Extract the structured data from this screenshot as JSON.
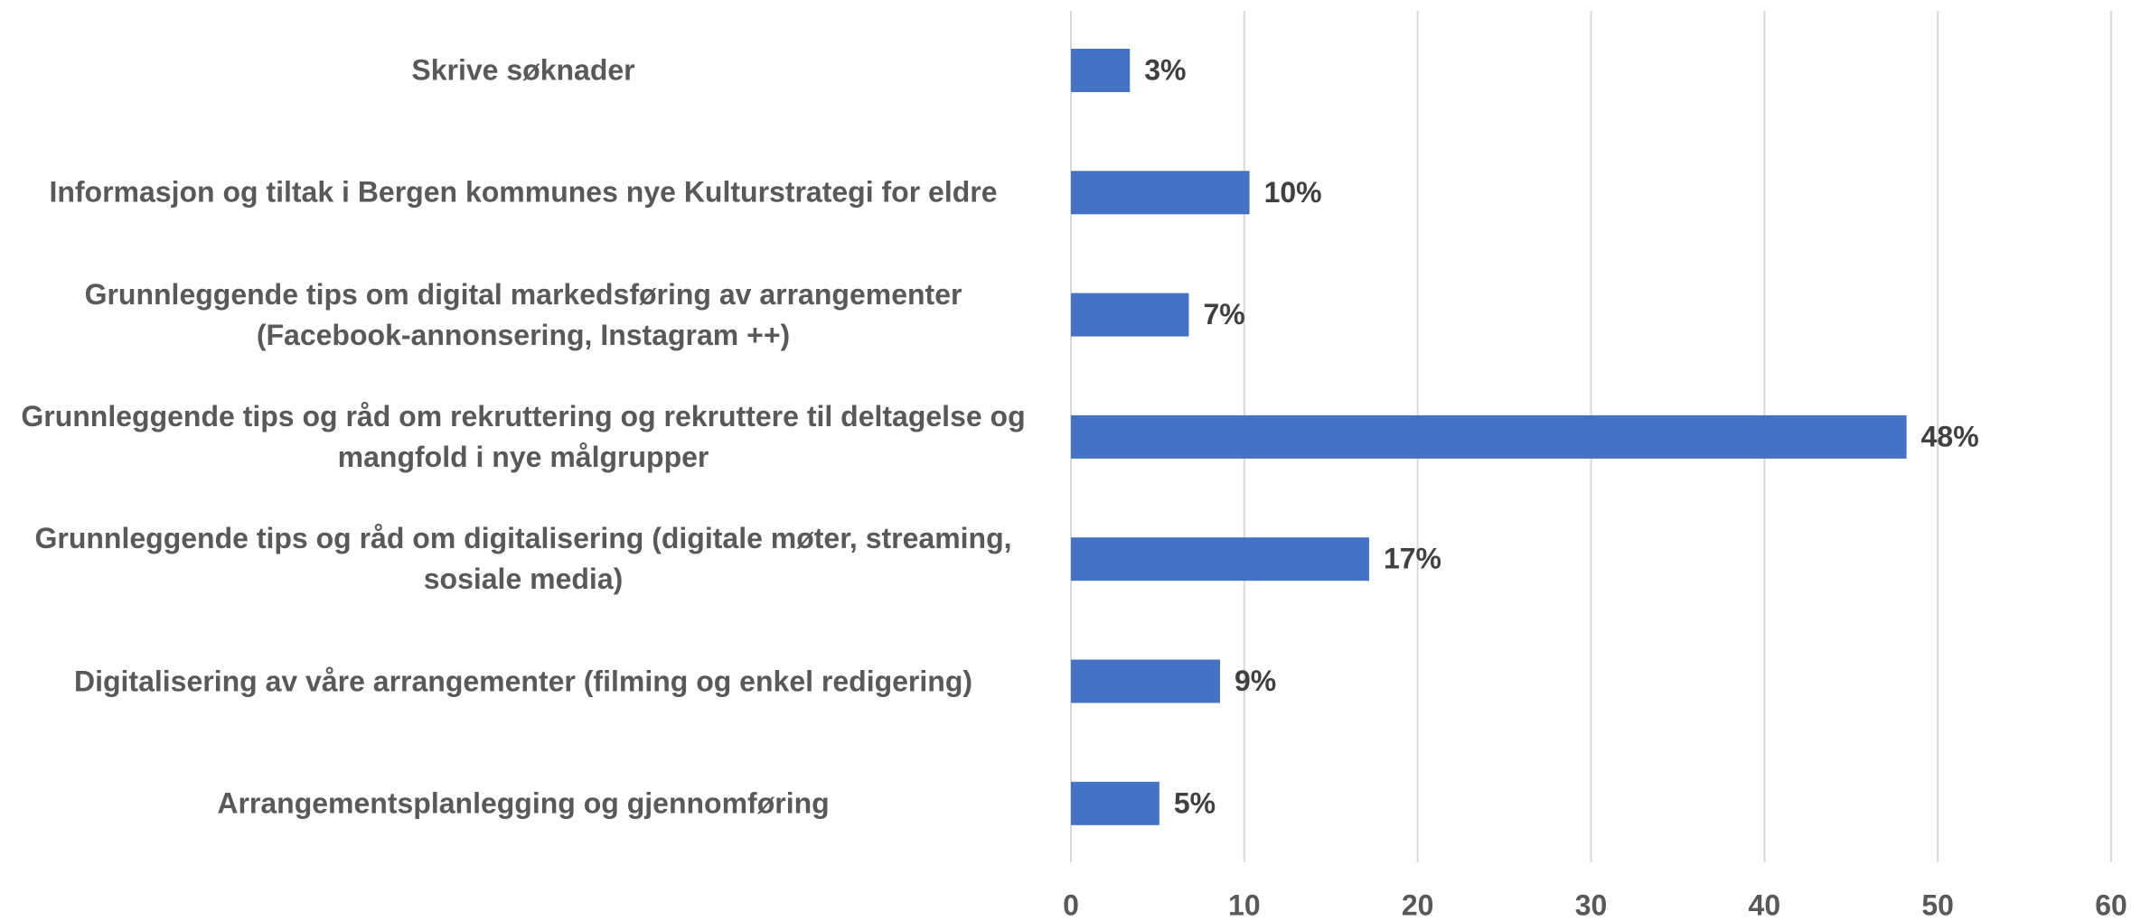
{
  "chart_data": {
    "type": "bar",
    "orientation": "horizontal",
    "categories": [
      "Skrive søknader",
      "Informasjon og tiltak i Bergen kommunes nye Kulturstrategi for eldre",
      "Grunnleggende tips om digital markedsføring av arrangementer\n(Facebook-annonsering, Instagram ++)",
      "Grunnleggende tips og råd om rekruttering og rekruttere til deltagelse og\nmangfold i nye målgrupper",
      "Grunnleggende tips og råd om digitalisering (digitale møter, streaming,\nsosiale media)",
      "Digitalisering av våre arrangementer (filming og enkel redigering)",
      "Arrangementsplanlegging og gjennomføring"
    ],
    "values": [
      3.4,
      10.3,
      6.8,
      48.2,
      17.2,
      8.6,
      5.1
    ],
    "value_labels": [
      "3%",
      "10%",
      "7%",
      "48%",
      "17%",
      "9%",
      "5%"
    ],
    "color": "#4472c4",
    "xlim": [
      0,
      60
    ],
    "xticks": [
      0,
      10,
      20,
      30,
      40,
      50,
      60
    ],
    "grid": true
  }
}
